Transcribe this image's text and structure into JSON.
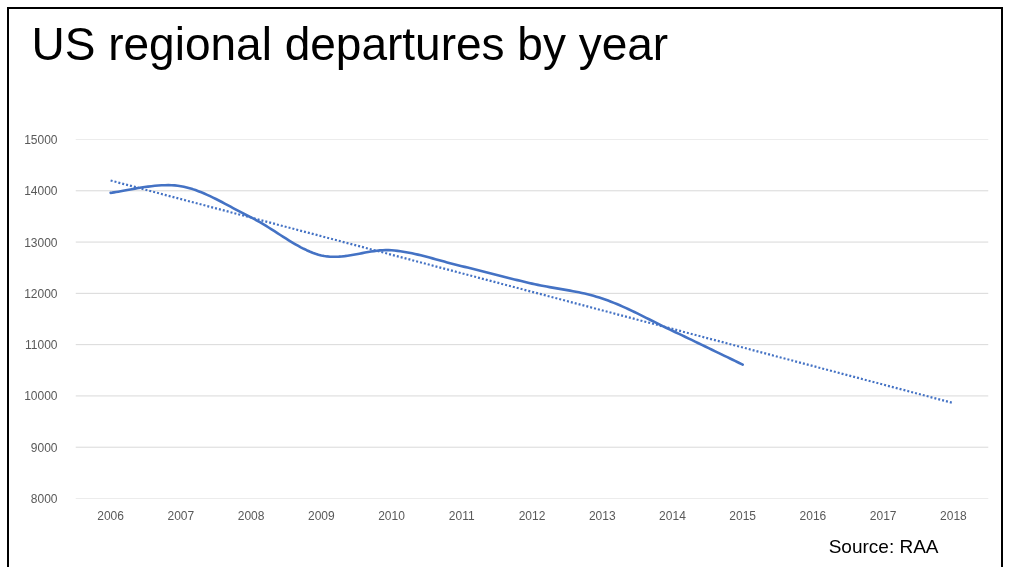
{
  "chart_data": {
    "type": "line",
    "title": "US regional departures by year",
    "x": [
      2006,
      2007,
      2008,
      2009,
      2010,
      2011,
      2012,
      2013,
      2014,
      2015
    ],
    "series": [
      {
        "color": "#4472c4",
        "line_style": "solid",
        "values": [
          13960,
          14090,
          13480,
          12740,
          12840,
          12530,
          12190,
          11900,
          11270,
          10610
        ]
      },
      {
        "type": "line",
        "x": [
          2006,
          2018
        ],
        "values": [
          14200,
          9860
        ],
        "color": "#4472c4",
        "line_style": "dotted"
      }
    ],
    "xlim": [
      2005.5,
      2018.5
    ],
    "xticks": [
      2006,
      2007,
      2008,
      2009,
      2010,
      2011,
      2012,
      2013,
      2014,
      2015,
      2016,
      2017,
      2018
    ],
    "ylim": [
      8000,
      15000
    ],
    "yticks": [
      8000,
      9000,
      10000,
      11000,
      12000,
      13000,
      14000,
      15000
    ],
    "grid": "y",
    "annotations": [
      "Source: RAA"
    ]
  }
}
